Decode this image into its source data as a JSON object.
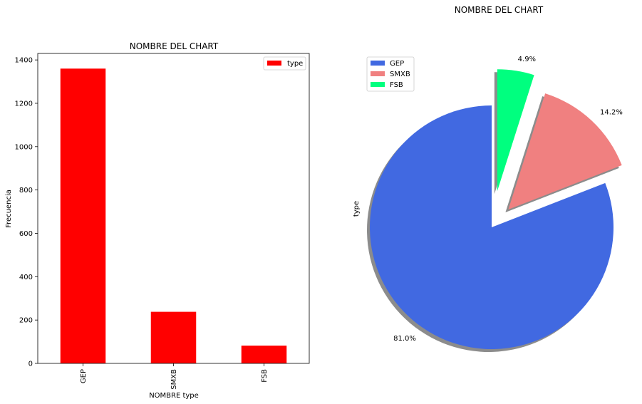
{
  "figure": {
    "suptitle": "NOMBRE DEL CHART"
  },
  "chart_data": [
    {
      "type": "bar",
      "title": "NOMBRE DEL CHART",
      "xlabel": "NOMBRE type",
      "ylabel": "Frecuencia",
      "categories": [
        "GEP",
        "SMXB",
        "FSB"
      ],
      "series": [
        {
          "name": "type",
          "values": [
            1360,
            238,
            82
          ],
          "color": "#ff0000"
        }
      ],
      "ylim": [
        0,
        1430
      ],
      "yticks": [
        0,
        200,
        400,
        600,
        800,
        1000,
        1200,
        1400
      ],
      "legend": "top-right",
      "grid": false
    },
    {
      "type": "pie",
      "ylabel": "type",
      "labels": [
        "GEP",
        "SMXB",
        "FSB"
      ],
      "values": [
        81.0,
        14.2,
        4.9
      ],
      "value_labels": [
        "81.0%",
        "14.2%",
        "4.9%"
      ],
      "colors": [
        "#4169e1",
        "#f08080",
        "#00ff7f"
      ],
      "explode": [
        0,
        0.2,
        0.3
      ],
      "startangle": 90,
      "shadow": true,
      "legend": "top-left"
    }
  ]
}
